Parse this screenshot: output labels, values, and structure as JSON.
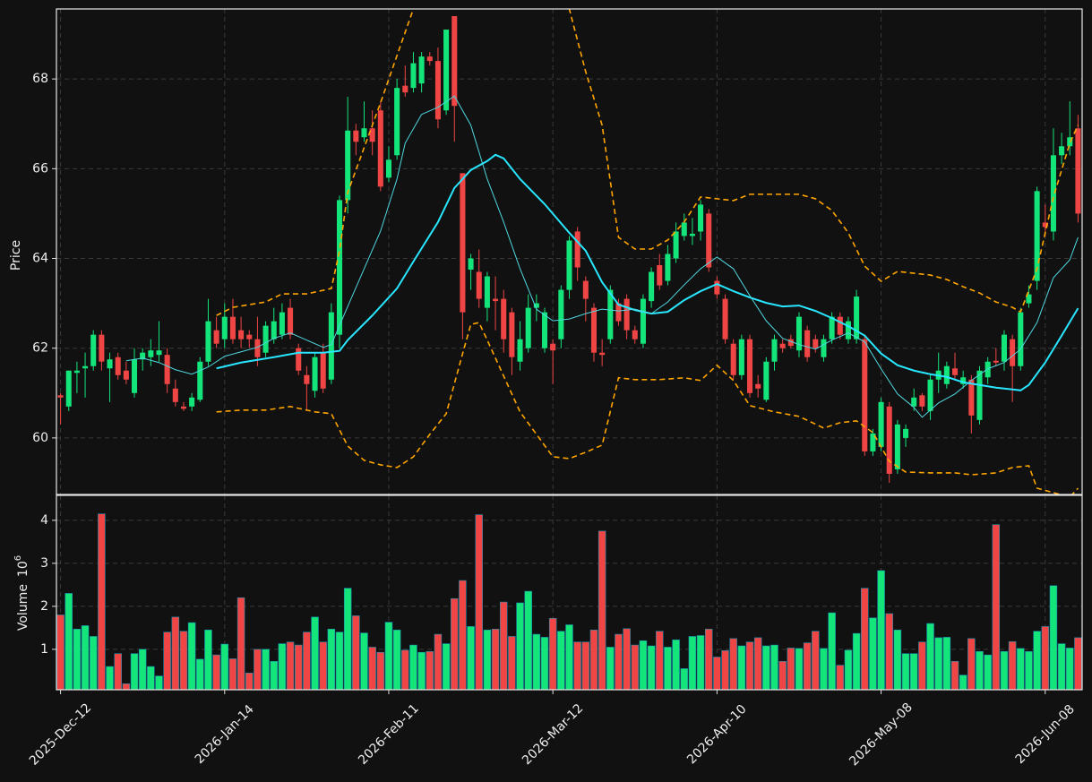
{
  "chart_data": {
    "type": "candlestick",
    "ylabel": "Price",
    "ylim": [
      58.74,
      69.56
    ],
    "yticks": [
      60,
      62,
      64,
      66,
      68
    ],
    "grid": true,
    "up_color": "#14e57b",
    "down_color": "#f04545",
    "categories": [
      "2025-Dec-12",
      null,
      null,
      null,
      null,
      null,
      null,
      null,
      null,
      null,
      null,
      null,
      null,
      null,
      null,
      null,
      null,
      null,
      null,
      null,
      "2026-Jan-14",
      null,
      null,
      null,
      null,
      null,
      null,
      null,
      null,
      null,
      null,
      null,
      null,
      null,
      null,
      null,
      null,
      null,
      null,
      null,
      "2026-Feb-11",
      null,
      null,
      null,
      null,
      null,
      null,
      null,
      null,
      null,
      null,
      null,
      null,
      null,
      null,
      null,
      null,
      null,
      null,
      null,
      "2026-Mar-12",
      null,
      null,
      null,
      null,
      null,
      null,
      null,
      null,
      null,
      null,
      null,
      null,
      null,
      null,
      null,
      null,
      null,
      null,
      null,
      "2026-Apr-10",
      null,
      null,
      null,
      null,
      null,
      null,
      null,
      null,
      null,
      null,
      null,
      null,
      null,
      null,
      null,
      null,
      null,
      null,
      null,
      "2026-May-08",
      null,
      null,
      null,
      null,
      null,
      null,
      null,
      null,
      null,
      null,
      null,
      null,
      null,
      null,
      null,
      null,
      null,
      null,
      null,
      "2026-Jun-08",
      null,
      null,
      null,
      null
    ],
    "open": [
      60.95,
      60.7,
      61.45,
      61.55,
      61.6,
      62.3,
      61.55,
      61.8,
      61.5,
      61.0,
      61.75,
      61.8,
      61.85,
      61.85,
      61.1,
      60.7,
      60.7,
      60.85,
      61.7,
      62.4,
      62.2,
      62.7,
      62.4,
      62.3,
      62.2,
      61.9,
      62.2,
      62.3,
      62.9,
      62.0,
      61.4,
      61.05,
      61.9,
      61.3,
      62.3,
      65.3,
      66.85,
      66.7,
      66.9,
      67.3,
      65.8,
      66.3,
      67.85,
      67.8,
      67.9,
      68.5,
      68.4,
      67.3,
      69.4,
      65.9,
      63.75,
      63.7,
      62.9,
      63.1,
      63.1,
      62.8,
      61.7,
      62.0,
      62.9,
      62.0,
      62.1,
      62.2,
      63.3,
      64.6,
      63.5,
      62.9,
      61.9,
      62.2,
      63.0,
      63.1,
      62.4,
      62.1,
      63.05,
      63.85,
      63.5,
      64.0,
      64.5,
      64.5,
      64.6,
      65.0,
      63.5,
      63.1,
      62.1,
      61.4,
      62.2,
      61.2,
      60.85,
      61.7,
      62.1,
      62.2,
      61.95,
      62.4,
      62.2,
      61.8,
      62.2,
      62.7,
      62.2,
      62.2,
      62.2,
      59.7,
      59.8,
      60.7,
      59.3,
      60.0,
      60.7,
      60.95,
      60.6,
      61.3,
      61.2,
      61.55,
      61.2,
      61.3,
      60.4,
      61.35,
      61.72,
      61.7,
      62.2,
      61.6,
      63.0,
      63.5,
      64.8,
      64.6,
      66.3,
      66.5,
      66.9
    ],
    "high": [
      61.0,
      61.5,
      61.7,
      61.9,
      62.4,
      62.4,
      61.9,
      61.9,
      61.7,
      62.0,
      62.0,
      62.2,
      62.6,
      62.0,
      61.3,
      60.8,
      61.0,
      61.8,
      63.1,
      62.7,
      63.0,
      63.1,
      62.7,
      62.4,
      62.7,
      62.6,
      62.9,
      63.0,
      63.1,
      62.1,
      61.6,
      61.9,
      62.1,
      63.0,
      65.4,
      67.6,
      67.0,
      67.5,
      67.3,
      67.5,
      66.5,
      68.0,
      68.3,
      68.6,
      68.6,
      68.6,
      68.7,
      69.1,
      69.4,
      65.9,
      64.1,
      64.2,
      63.7,
      63.6,
      63.3,
      62.9,
      62.6,
      63.2,
      63.2,
      62.9,
      62.2,
      63.4,
      64.5,
      64.7,
      63.6,
      63.0,
      62.2,
      63.4,
      63.1,
      63.2,
      62.5,
      63.2,
      63.8,
      64.1,
      64.3,
      64.8,
      65.0,
      64.9,
      65.3,
      65.1,
      63.6,
      63.2,
      62.2,
      62.3,
      62.3,
      61.4,
      61.8,
      62.3,
      62.2,
      62.3,
      62.8,
      62.5,
      62.3,
      62.3,
      62.8,
      62.8,
      62.7,
      63.3,
      62.3,
      60.2,
      60.9,
      60.8,
      60.4,
      60.3,
      61.1,
      61.0,
      61.4,
      61.9,
      61.7,
      61.9,
      61.5,
      61.4,
      61.6,
      61.8,
      62.0,
      62.4,
      62.3,
      62.9,
      63.4,
      65.6,
      65.2,
      66.9,
      66.8,
      67.5,
      67.2
    ],
    "low": [
      60.3,
      60.6,
      61.0,
      60.9,
      61.5,
      61.5,
      60.8,
      61.3,
      61.2,
      60.9,
      61.5,
      61.6,
      61.7,
      61.0,
      60.7,
      60.6,
      60.6,
      60.8,
      61.6,
      62.0,
      62.0,
      62.1,
      62.0,
      62.0,
      61.6,
      61.8,
      62.1,
      62.2,
      62.2,
      61.4,
      60.6,
      60.9,
      61.0,
      61.2,
      62.0,
      65.0,
      66.3,
      66.6,
      66.3,
      65.5,
      65.7,
      66.2,
      67.6,
      67.7,
      67.7,
      68.3,
      66.9,
      67.2,
      66.6,
      62.2,
      63.3,
      62.9,
      62.6,
      62.4,
      61.9,
      61.4,
      61.5,
      61.9,
      62.6,
      61.9,
      61.2,
      62.0,
      63.1,
      63.5,
      62.6,
      61.7,
      61.6,
      62.1,
      62.5,
      62.2,
      62.1,
      62.0,
      62.9,
      63.3,
      63.4,
      63.9,
      64.4,
      64.3,
      64.4,
      63.7,
      63.1,
      62.1,
      61.3,
      61.3,
      60.9,
      60.9,
      60.8,
      61.5,
      61.9,
      62.0,
      61.8,
      61.7,
      61.9,
      61.7,
      62.1,
      62.2,
      62.1,
      62.1,
      59.6,
      59.6,
      59.7,
      59.0,
      59.2,
      59.8,
      60.6,
      60.6,
      60.4,
      61.0,
      61.1,
      61.3,
      61.1,
      60.1,
      60.3,
      61.2,
      61.6,
      61.5,
      60.8,
      61.5,
      62.9,
      63.3,
      64.5,
      64.4,
      66.1,
      66.3,
      64.8
    ],
    "close": [
      60.9,
      61.5,
      61.5,
      61.6,
      62.3,
      61.7,
      61.75,
      61.4,
      61.3,
      61.75,
      61.9,
      61.95,
      61.95,
      61.2,
      60.8,
      60.65,
      60.9,
      61.7,
      62.6,
      62.1,
      62.7,
      62.2,
      62.2,
      62.2,
      61.8,
      62.5,
      62.6,
      62.8,
      62.3,
      61.5,
      61.2,
      61.8,
      61.1,
      62.8,
      65.3,
      66.85,
      66.6,
      66.9,
      66.6,
      65.6,
      66.2,
      67.8,
      67.7,
      68.35,
      68.5,
      68.4,
      67.1,
      69.1,
      67.4,
      62.8,
      64.0,
      63.1,
      63.6,
      63.05,
      62.2,
      61.8,
      62.2,
      62.9,
      63.0,
      62.8,
      61.95,
      63.3,
      64.4,
      63.8,
      63.1,
      61.9,
      61.85,
      63.3,
      62.6,
      62.4,
      62.2,
      63.1,
      63.7,
      63.4,
      64.1,
      64.6,
      64.8,
      64.55,
      65.2,
      63.8,
      63.2,
      62.2,
      61.4,
      62.2,
      61.0,
      61.1,
      61.7,
      62.2,
      62.0,
      62.05,
      62.7,
      61.8,
      62.0,
      62.2,
      62.7,
      62.3,
      62.6,
      63.15,
      59.7,
      60.1,
      60.8,
      59.2,
      60.3,
      60.2,
      60.9,
      60.7,
      61.3,
      61.5,
      61.6,
      61.4,
      61.35,
      60.5,
      61.5,
      61.7,
      61.68,
      62.3,
      61.6,
      62.8,
      63.2,
      65.5,
      64.7,
      66.3,
      66.5,
      66.7,
      65.0
    ],
    "overlays": [
      {
        "color": "#28e6ff",
        "width": 2,
        "dash": "none",
        "x": [
          19,
          22,
          26,
          29,
          32,
          34,
          35,
          38,
          41,
          43,
          46,
          48,
          50,
          52,
          53,
          54,
          56,
          59,
          62,
          64,
          66,
          68,
          70,
          72,
          74,
          76,
          78,
          80,
          82,
          84,
          86,
          88,
          90,
          92,
          94,
          96,
          98,
          100,
          102,
          104,
          106,
          108,
          110,
          112,
          114,
          116,
          117,
          118,
          120,
          122,
          124
        ],
        "values": [
          61.55,
          61.68,
          61.8,
          61.9,
          61.9,
          61.94,
          62.18,
          62.73,
          63.33,
          63.93,
          64.81,
          65.57,
          65.97,
          66.17,
          66.31,
          66.23,
          65.77,
          65.21,
          64.57,
          64.17,
          63.47,
          62.97,
          62.85,
          62.77,
          62.81,
          63.07,
          63.27,
          63.43,
          63.27,
          63.13,
          63.01,
          62.93,
          62.95,
          62.83,
          62.67,
          62.49,
          62.28,
          61.88,
          61.62,
          61.5,
          61.42,
          61.36,
          61.24,
          61.18,
          61.12,
          61.08,
          61.06,
          61.18,
          61.68,
          62.28,
          62.89
        ]
      },
      {
        "color": "#4fd8e0",
        "width": 1,
        "dash": "none",
        "x": [
          8,
          10,
          12,
          14,
          16,
          18,
          20,
          22,
          24,
          26,
          28,
          30,
          32,
          33,
          35,
          37,
          39,
          41,
          42,
          44,
          46,
          48,
          50,
          52,
          54,
          56,
          58,
          60,
          62,
          64,
          66,
          68,
          70,
          72,
          74,
          76,
          78,
          80,
          82,
          84,
          86,
          88,
          90,
          92,
          94,
          96,
          98,
          100,
          102,
          104,
          105,
          107,
          109,
          111,
          113,
          115,
          117,
          119,
          121,
          123,
          124
        ],
        "values": [
          61.72,
          61.78,
          61.68,
          61.52,
          61.42,
          61.58,
          61.82,
          61.92,
          62.02,
          62.22,
          62.34,
          62.18,
          62.02,
          62.08,
          62.93,
          63.77,
          64.61,
          65.77,
          66.57,
          67.21,
          67.37,
          67.62,
          66.97,
          65.77,
          64.81,
          63.77,
          62.87,
          62.61,
          62.65,
          62.77,
          62.87,
          62.83,
          62.87,
          62.77,
          63.03,
          63.41,
          63.77,
          64.03,
          63.77,
          63.17,
          62.61,
          62.22,
          62.08,
          61.98,
          62.18,
          62.34,
          62.14,
          61.54,
          60.98,
          60.68,
          60.46,
          60.78,
          60.98,
          61.28,
          61.54,
          61.68,
          61.98,
          62.57,
          63.57,
          63.97,
          64.47
        ]
      },
      {
        "color": "#ffa500",
        "width": 1.6,
        "dash": "6 4",
        "x": [
          19,
          21,
          23,
          25,
          27,
          30,
          33,
          34,
          35,
          37,
          39,
          41,
          43,
          44,
          48,
          53,
          58,
          62,
          64,
          66,
          68,
          70,
          72,
          74,
          76,
          78,
          80,
          82,
          84,
          86,
          88,
          90,
          92,
          94,
          96,
          98,
          100,
          102,
          104,
          106,
          108,
          110,
          112,
          114,
          116,
          117,
          119,
          121,
          123,
          124
        ],
        "values": [
          62.73,
          62.91,
          62.97,
          63.03,
          63.21,
          63.21,
          63.33,
          64.17,
          65.47,
          66.47,
          67.47,
          68.52,
          69.56,
          70.0,
          71.5,
          71.5,
          70.5,
          69.56,
          68.16,
          66.97,
          64.47,
          64.21,
          64.21,
          64.41,
          64.81,
          65.37,
          65.33,
          65.29,
          65.43,
          65.43,
          65.43,
          65.43,
          65.33,
          65.07,
          64.57,
          63.83,
          63.49,
          63.71,
          63.67,
          63.63,
          63.53,
          63.37,
          63.23,
          63.03,
          62.91,
          62.81,
          63.77,
          65.37,
          66.57,
          66.97
        ]
      },
      {
        "color": "#ffa500",
        "width": 1.6,
        "dash": "6 4",
        "x": [
          19,
          22,
          25,
          28,
          31,
          33,
          35,
          37,
          39,
          41,
          43,
          45,
          47,
          49,
          50,
          51,
          52,
          54,
          56,
          58,
          60,
          62,
          64,
          66,
          68,
          70,
          73,
          76,
          78,
          80,
          82,
          84,
          87,
          90,
          93,
          95,
          97,
          99,
          101,
          103,
          106,
          109,
          111,
          114,
          116,
          118,
          119,
          121,
          123,
          124
        ],
        "values": [
          60.58,
          60.62,
          60.62,
          60.7,
          60.58,
          60.54,
          59.82,
          59.5,
          59.4,
          59.34,
          59.58,
          60.08,
          60.54,
          61.88,
          62.53,
          62.57,
          62.18,
          61.38,
          60.58,
          60.08,
          59.58,
          59.54,
          59.68,
          59.84,
          61.34,
          61.3,
          61.3,
          61.34,
          61.28,
          61.62,
          61.28,
          60.72,
          60.58,
          60.48,
          60.22,
          60.34,
          60.38,
          60.12,
          59.48,
          59.24,
          59.22,
          59.22,
          59.18,
          59.22,
          59.34,
          59.38,
          58.88,
          58.78,
          58.68,
          58.88
        ]
      }
    ],
    "volume": {
      "ylabel": "Volume",
      "scale_base": "10",
      "scale_exponent": "6",
      "ylim": [
        0.06,
        4.58
      ],
      "yticks": [
        1,
        2,
        3,
        4
      ],
      "values": [
        1.8,
        2.3,
        1.47,
        1.55,
        1.3,
        4.15,
        0.6,
        0.9,
        0.2,
        0.9,
        1.0,
        0.6,
        0.38,
        1.4,
        1.75,
        1.42,
        1.62,
        0.77,
        1.45,
        0.87,
        1.12,
        0.78,
        2.2,
        0.45,
        1.0,
        1.0,
        0.72,
        1.13,
        1.17,
        1.1,
        1.4,
        1.75,
        1.17,
        1.47,
        1.4,
        2.42,
        1.78,
        1.38,
        1.05,
        0.93,
        1.63,
        1.45,
        0.98,
        1.1,
        0.93,
        0.95,
        1.35,
        1.13,
        2.18,
        2.6,
        1.53,
        4.13,
        1.45,
        1.47,
        2.1,
        1.3,
        2.08,
        2.35,
        1.35,
        1.28,
        1.72,
        1.42,
        1.57,
        1.17,
        1.17,
        1.45,
        3.75,
        1.05,
        1.35,
        1.48,
        1.1,
        1.2,
        1.08,
        1.42,
        1.05,
        1.22,
        0.55,
        1.3,
        1.32,
        1.47,
        0.82,
        0.97,
        1.25,
        1.08,
        1.17,
        1.27,
        1.08,
        1.1,
        0.72,
        1.03,
        1.02,
        1.15,
        1.42,
        1.02,
        1.85,
        0.63,
        0.98,
        1.37,
        2.42,
        1.73,
        2.83,
        1.83,
        1.45,
        0.9,
        0.9,
        1.17,
        1.6,
        1.27,
        1.28,
        0.72,
        0.4,
        1.25,
        0.95,
        0.87,
        3.9,
        0.95,
        1.18,
        1.02,
        0.95,
        1.42,
        1.53,
        2.48,
        1.13,
        1.03,
        1.27
      ]
    }
  }
}
